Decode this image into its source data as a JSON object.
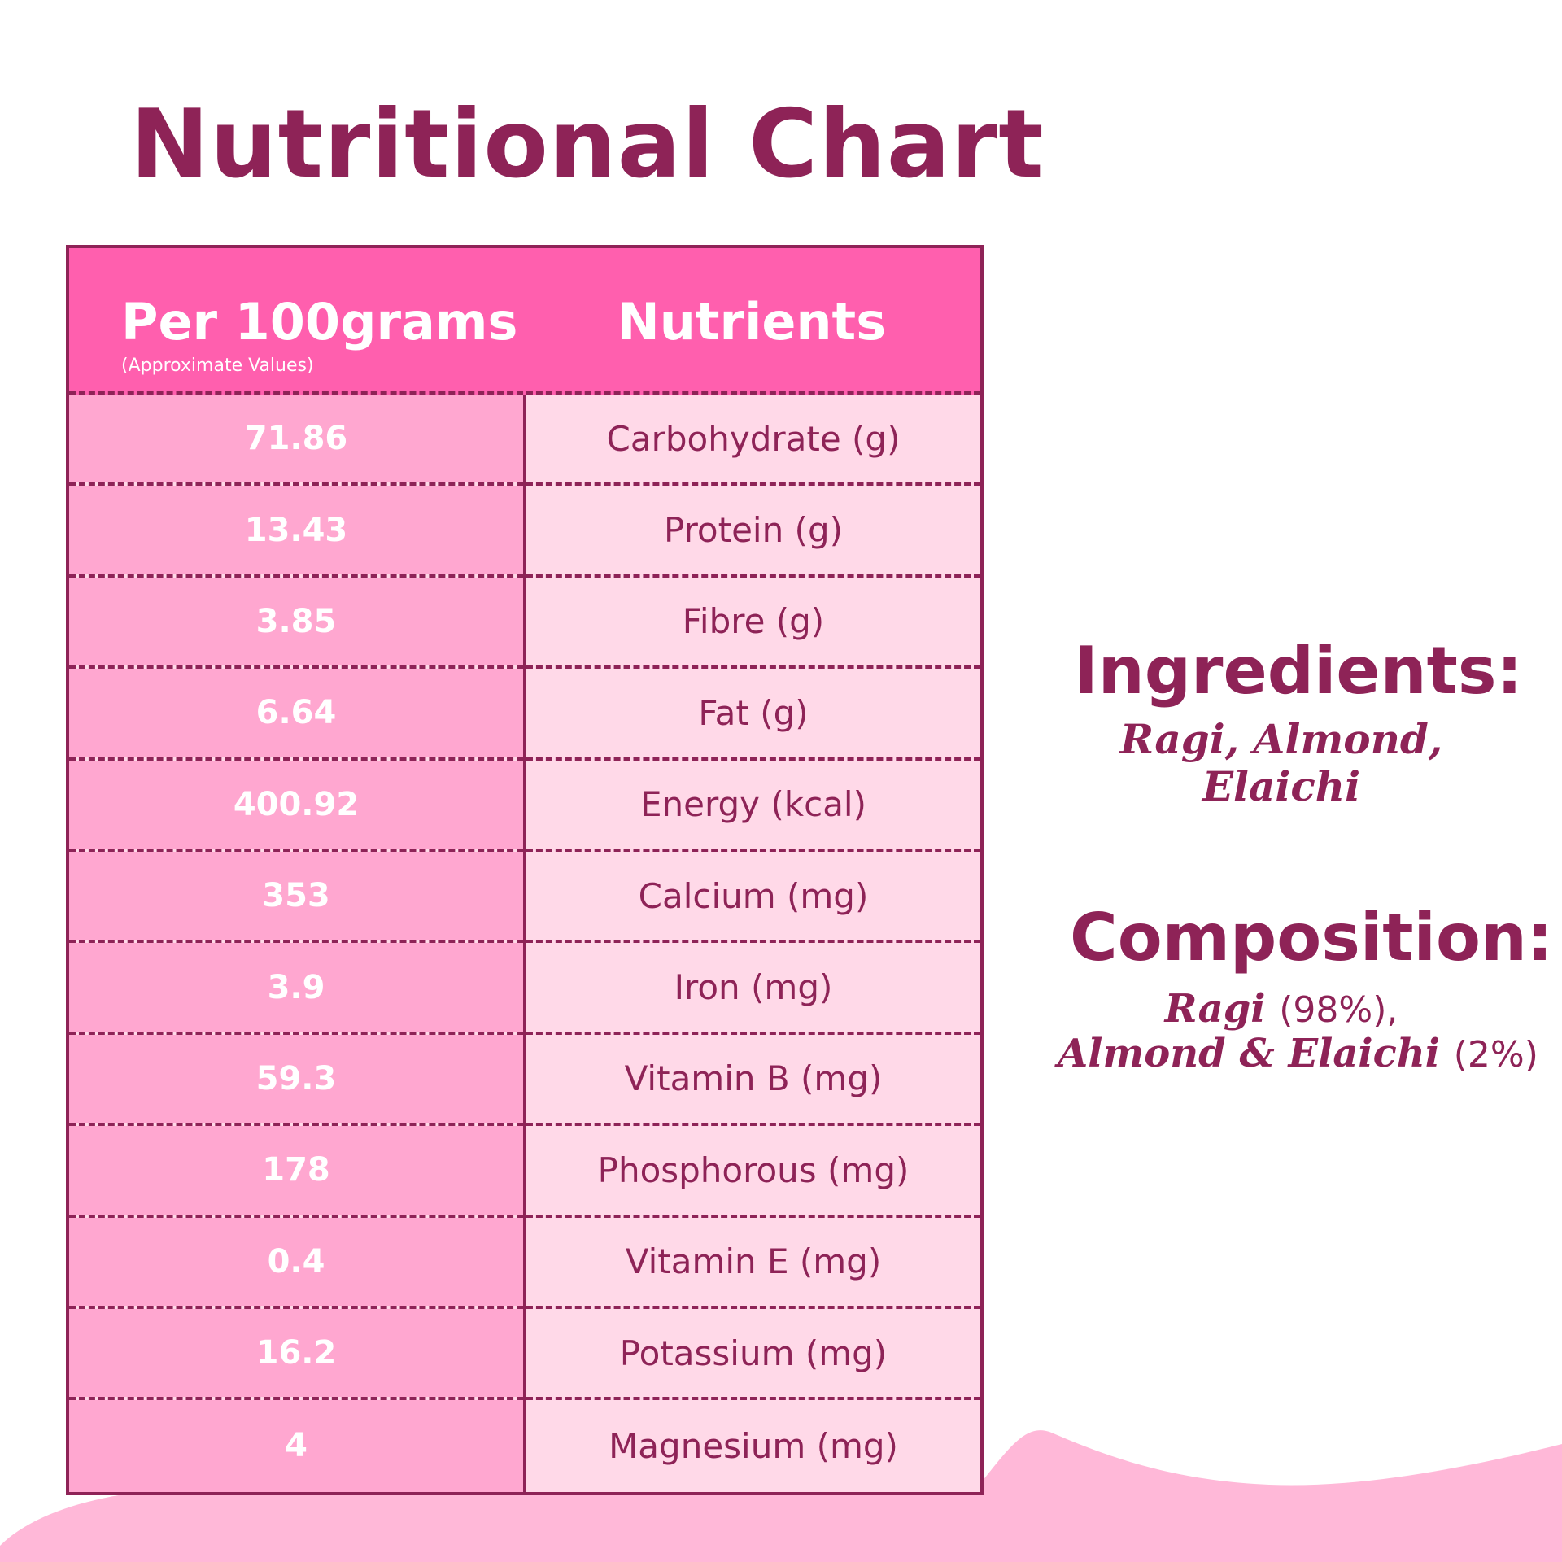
{
  "title": "Nutritional Chart",
  "table": {
    "header_left": "Per 100grams",
    "header_left_sub": "(Approximate Values)",
    "header_right": "Nutrients",
    "rows": [
      {
        "value": "71.86",
        "nutrient": "Carbohydrate (g)"
      },
      {
        "value": "13.43",
        "nutrient": "Protein (g)"
      },
      {
        "value": "3.85",
        "nutrient": "Fibre (g)"
      },
      {
        "value": "6.64",
        "nutrient": "Fat (g)"
      },
      {
        "value": "400.92",
        "nutrient": "Energy (kcal)"
      },
      {
        "value": "353",
        "nutrient": "Calcium (mg)"
      },
      {
        "value": "3.9",
        "nutrient": "Iron (mg)"
      },
      {
        "value": "59.3",
        "nutrient": "Vitamin B (mg)"
      },
      {
        "value": "178",
        "nutrient": "Phosphorous (mg)"
      },
      {
        "value": "0.4",
        "nutrient": "Vitamin E (mg)"
      },
      {
        "value": "16.2",
        "nutrient": "Potassium (mg)"
      },
      {
        "value": "4",
        "nutrient": "Magnesium (mg)"
      }
    ]
  },
  "ingredients": {
    "heading": "Ingredients:",
    "line1": "Ragi, Almond,",
    "line2": "Elaichi"
  },
  "composition": {
    "heading": "Composition:",
    "line1_name": "Ragi",
    "line1_pct": "(98%),",
    "line2_name": "Almond & Elaichi",
    "line2_pct": "(2%)"
  },
  "colors": {
    "text": "#8e2357",
    "header_bg": "#ff5fae",
    "value_bg": "#ffa7d0",
    "nutrient_bg": "#ffd9e8",
    "wave": "#ffb8d8"
  }
}
